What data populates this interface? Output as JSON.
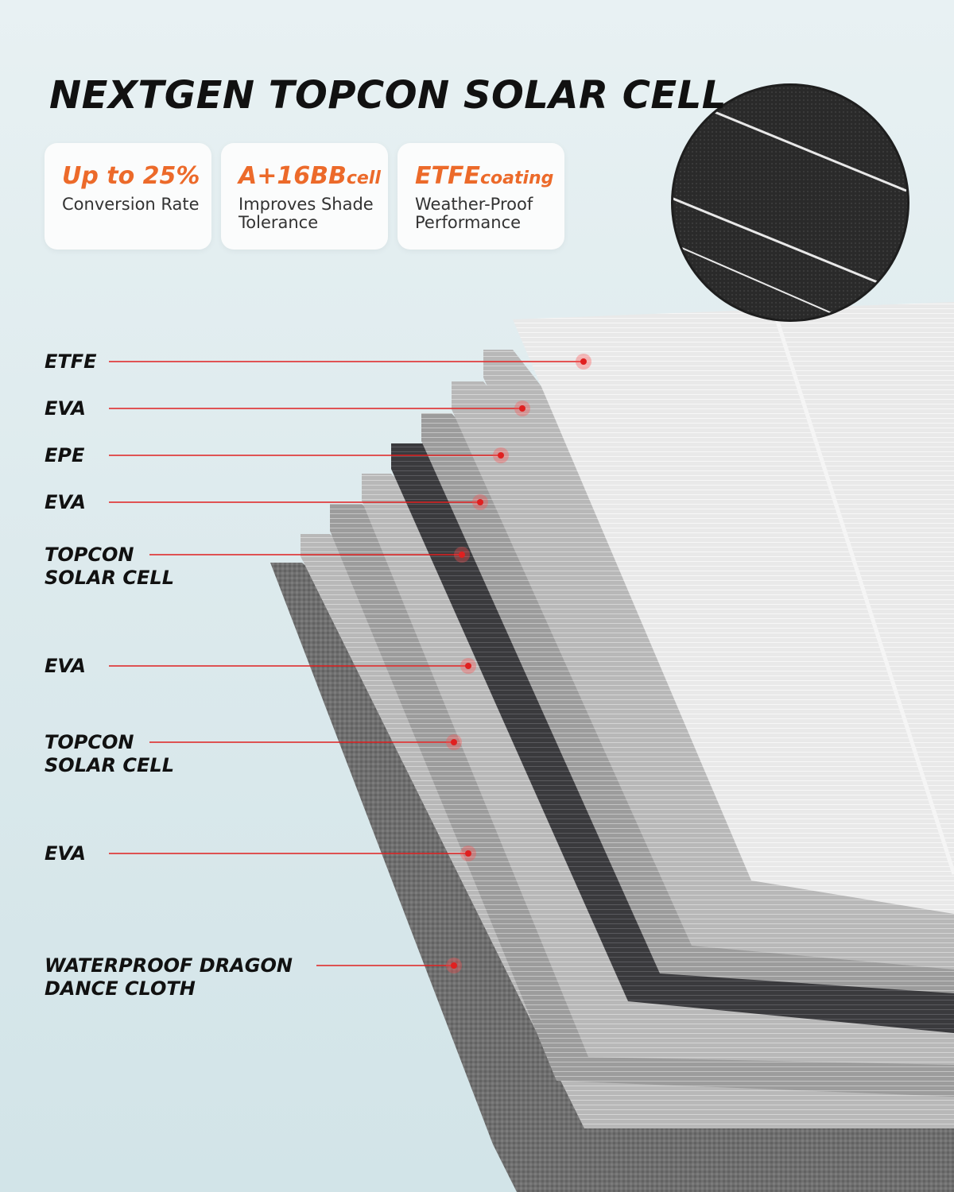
{
  "title": "NEXTGEN TOPCON SOLAR CELL",
  "accent_color": "#ec6a2a",
  "pointer_color": "#e02020",
  "features": [
    {
      "headline": "Up to 25%",
      "headline_small": "",
      "description": "Conversion Rate"
    },
    {
      "headline": "A+16BB",
      "headline_small": "cell",
      "description": "Improves Shade Tolerance"
    },
    {
      "headline": "ETFE",
      "headline_small": "coating",
      "description": "Weather-Proof Performance"
    }
  ],
  "layers": [
    {
      "label_line1": "ETFE",
      "label_line2": ""
    },
    {
      "label_line1": "EVA",
      "label_line2": ""
    },
    {
      "label_line1": "EPE",
      "label_line2": ""
    },
    {
      "label_line1": "EVA",
      "label_line2": ""
    },
    {
      "label_line1": "TOPCON",
      "label_line2": "SOLAR CELL"
    },
    {
      "label_line1": "EVA",
      "label_line2": ""
    },
    {
      "label_line1": "TOPCON",
      "label_line2": "SOLAR CELL"
    },
    {
      "label_line1": "EVA",
      "label_line2": ""
    },
    {
      "label_line1": "WATERPROOF DRAGON",
      "label_line2": "DANCE CLOTH"
    }
  ],
  "closeup_icon": "solar-cell-closeup-icon"
}
